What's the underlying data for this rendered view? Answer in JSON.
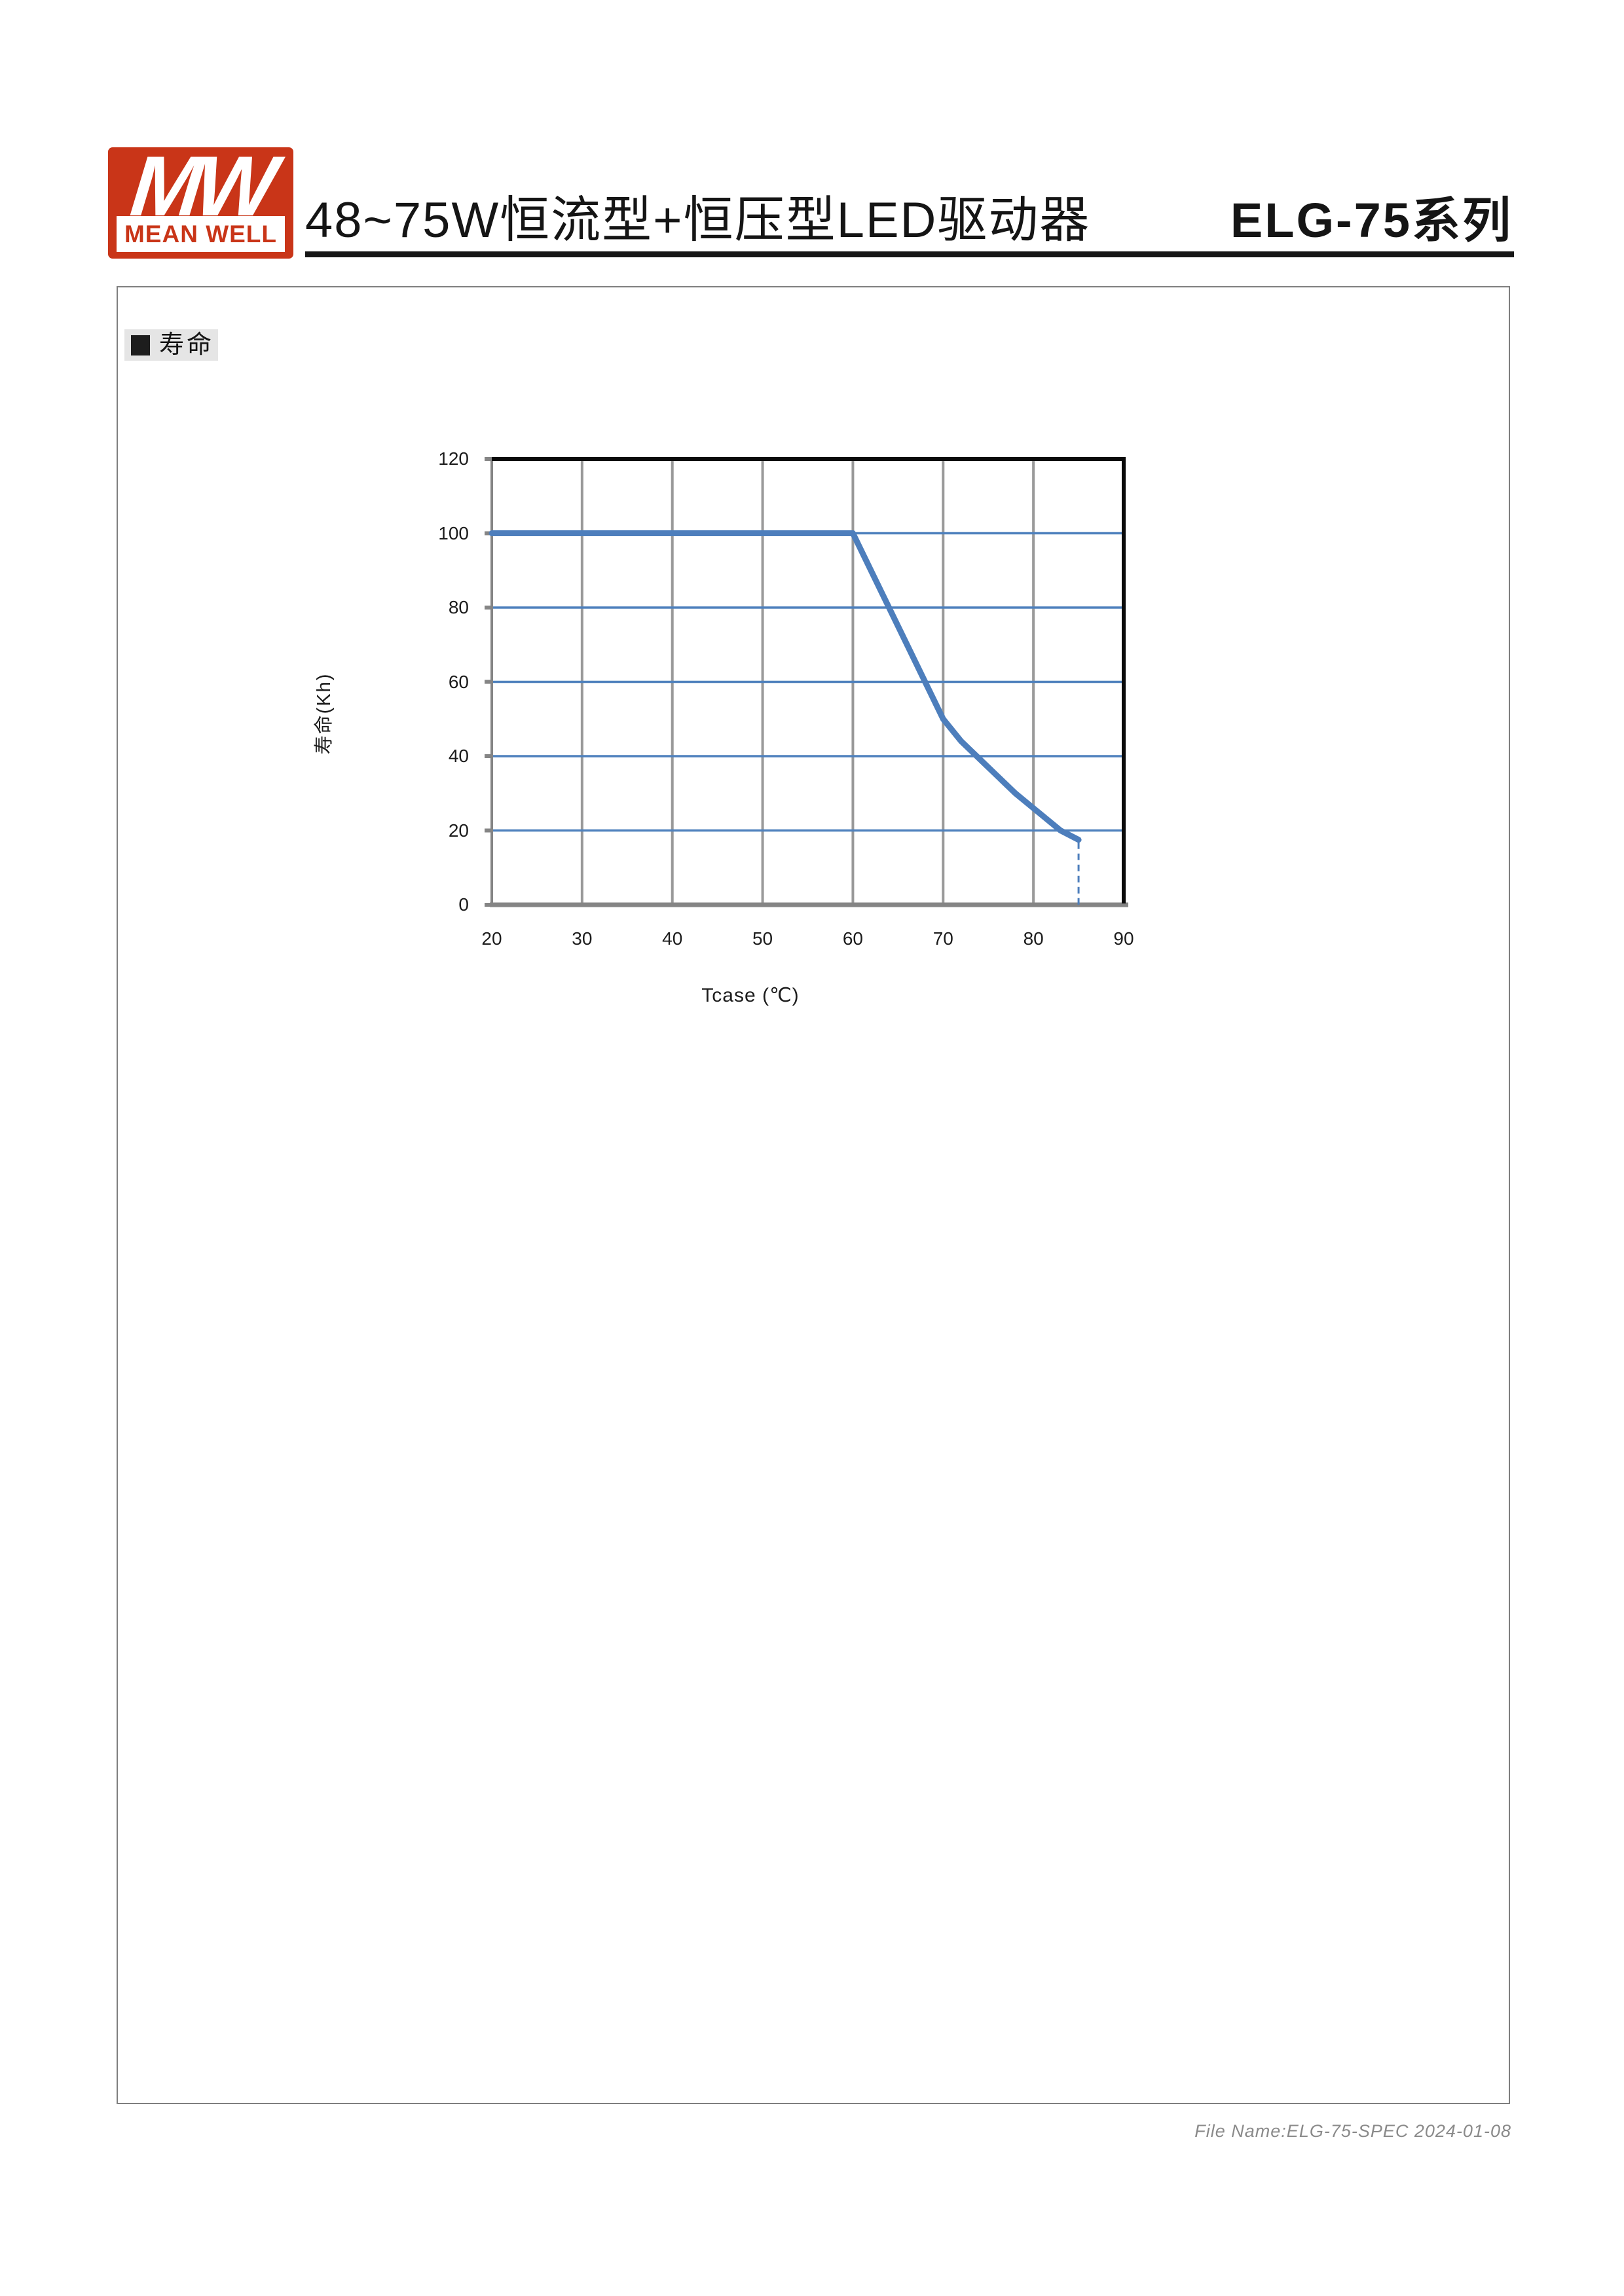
{
  "header": {
    "logo": {
      "mw": "MW",
      "brand": "MEAN WELL"
    },
    "title": "48~75W恒流型+恒压型LED驱动器",
    "series_title": "ELG-75系列"
  },
  "section": {
    "label": "寿命"
  },
  "chart_data": {
    "type": "line",
    "title": "",
    "xlabel": "Tcase (℃)",
    "ylabel": "寿命(Kh)",
    "xlim": [
      20,
      90
    ],
    "ylim": [
      0,
      120
    ],
    "x_ticks": [
      20,
      30,
      40,
      50,
      60,
      70,
      80,
      90
    ],
    "y_ticks": [
      0,
      20,
      40,
      60,
      80,
      100,
      120
    ],
    "grid": true,
    "legend_position": "none",
    "series": [
      {
        "name": "寿命",
        "points": [
          [
            20,
            100
          ],
          [
            60,
            100
          ],
          [
            70,
            50
          ],
          [
            72,
            44
          ],
          [
            75,
            37
          ],
          [
            78,
            30
          ],
          [
            80,
            26
          ],
          [
            83,
            20
          ],
          [
            85,
            17.5
          ]
        ]
      }
    ],
    "annotations": [
      {
        "type": "dashed-drop-line",
        "x": 85,
        "from_y": 17.5,
        "to_y": 0
      }
    ],
    "colors": {
      "line": "#4d7ebc",
      "h_grid": "#4f81bd",
      "v_grid": "#999999",
      "axis_gray": "#858585",
      "border_black": "#0a0a0a"
    }
  },
  "footer": {
    "text": "File Name:ELG-75-SPEC 2024-01-08"
  }
}
